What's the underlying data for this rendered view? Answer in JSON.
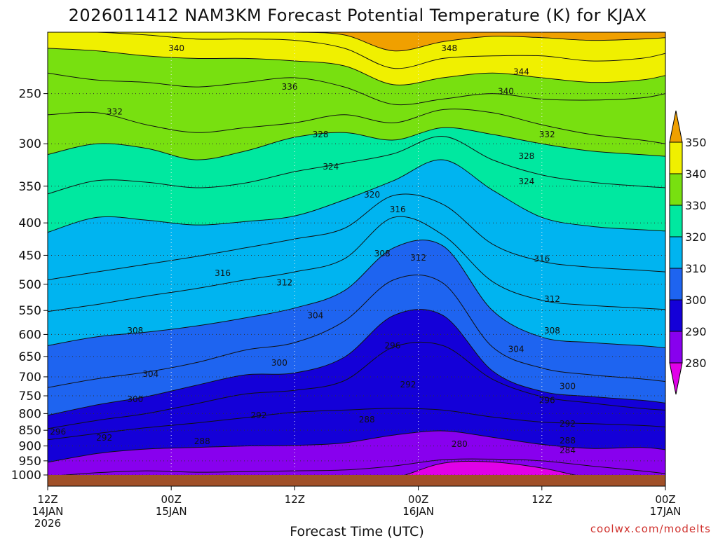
{
  "chart_data": {
    "type": "heatmap",
    "title": "2026011412 NAM3KM Forecast Potential Temperature (K) for KJAX",
    "xlabel": "Forecast Time (UTC)",
    "ylabel": "",
    "credit": "coolwx.com/modelts",
    "x_ticks": [
      {
        "lines": [
          "12Z",
          "14JAN",
          "2026"
        ]
      },
      {
        "lines": [
          "00Z",
          "15JAN"
        ]
      },
      {
        "lines": [
          "12Z"
        ]
      },
      {
        "lines": [
          "00Z",
          "16JAN"
        ]
      },
      {
        "lines": [
          "12Z"
        ]
      },
      {
        "lines": [
          "00Z",
          "17JAN"
        ]
      }
    ],
    "x_hours": [
      0,
      12,
      24,
      36,
      48,
      60
    ],
    "y_ticks": [
      250,
      300,
      350,
      400,
      450,
      500,
      550,
      600,
      650,
      700,
      750,
      800,
      850,
      900,
      950,
      1000
    ],
    "ylim_hPa": [
      1000,
      200
    ],
    "y_scale": "log-pressure",
    "grid": true,
    "colorbar": {
      "levels": [
        280,
        290,
        300,
        310,
        320,
        330,
        340,
        350
      ],
      "labels": [
        "280",
        "290",
        "300",
        "310",
        "320",
        "330",
        "340",
        "350"
      ],
      "colors": [
        "#e000e8",
        "#8800ee",
        "#1400d8",
        "#1e64f0",
        "#00b4f0",
        "#00e8a0",
        "#78e010",
        "#f0f000",
        "#f0a000"
      ],
      "extend": "both"
    },
    "x_samples": [
      0,
      4.8,
      9.6,
      14.4,
      19.2,
      24,
      28.8,
      33.6,
      38.4,
      43.2,
      48,
      52.8,
      57.6,
      60
    ],
    "isentropes": [
      {
        "theta": 280,
        "p": [
          1010,
          1010,
          1010,
          1010,
          1010,
          1010,
          1010,
          1010,
          958,
          954,
          975,
          1010,
          1010,
          1010
        ]
      },
      {
        "theta": 284,
        "p": [
          1005,
          992,
          985,
          990,
          988,
          985,
          982,
          968,
          946,
          944,
          950,
          968,
          985,
          995
        ]
      },
      {
        "theta": 288,
        "p": [
          955,
          925,
          910,
          905,
          900,
          898,
          890,
          865,
          852,
          872,
          895,
          908,
          905,
          912
        ]
      },
      {
        "theta": 292,
        "p": [
          880,
          860,
          842,
          828,
          812,
          796,
          790,
          785,
          790,
          810,
          825,
          830,
          835,
          840
        ]
      },
      {
        "theta": 296,
        "p": [
          845,
          820,
          800,
          772,
          745,
          735,
          710,
          628,
          625,
          706,
          752,
          770,
          785,
          790
        ]
      },
      {
        "theta": 300,
        "p": [
          805,
          775,
          752,
          722,
          695,
          690,
          652,
          560,
          560,
          685,
          738,
          752,
          762,
          770
        ]
      },
      {
        "theta": 304,
        "p": [
          728,
          705,
          688,
          665,
          635,
          618,
          572,
          492,
          498,
          628,
          678,
          695,
          705,
          712
        ]
      },
      {
        "theta": 308,
        "p": [
          625,
          605,
          595,
          582,
          565,
          545,
          512,
          438,
          435,
          550,
          606,
          618,
          625,
          630
        ]
      },
      {
        "theta": 312,
        "p": [
          552,
          538,
          522,
          508,
          492,
          478,
          456,
          392,
          418,
          495,
          530,
          540,
          545,
          548
        ]
      },
      {
        "theta": 316,
        "p": [
          492,
          478,
          465,
          452,
          438,
          424,
          408,
          362,
          374,
          432,
          460,
          470,
          475,
          478
        ]
      },
      {
        "theta": 320,
        "p": [
          414,
          392,
          396,
          403,
          398,
          390,
          368,
          343,
          318,
          355,
          392,
          405,
          410,
          412
        ]
      },
      {
        "theta": 324,
        "p": [
          360,
          343,
          345,
          352,
          346,
          332,
          322,
          311,
          292,
          318,
          336,
          345,
          350,
          352
        ]
      },
      {
        "theta": 328,
        "p": [
          312,
          300,
          305,
          318,
          308,
          293,
          288,
          296,
          283,
          290,
          300,
          308,
          312,
          314
        ]
      },
      {
        "theta": 332,
        "p": [
          270,
          268,
          280,
          288,
          283,
          278,
          270,
          278,
          265,
          268,
          280,
          290,
          296,
          300
        ]
      },
      {
        "theta": 336,
        "p": [
          232,
          238,
          240,
          244,
          240,
          236,
          244,
          260,
          255,
          250,
          255,
          256,
          254,
          250
        ]
      },
      {
        "theta": 340,
        "p": [
          212,
          214,
          218,
          220,
          220,
          222,
          226,
          242,
          236,
          232,
          236,
          240,
          238,
          234
        ]
      },
      {
        "theta": 344,
        "p": [
          200,
          200,
          202,
          205,
          205,
          206,
          212,
          228,
          220,
          218,
          218,
          222,
          220,
          216
        ]
      },
      {
        "theta": 348,
        "p": [
          200,
          200,
          200,
          200,
          200,
          200,
          202,
          214,
          207,
          203,
          204,
          206,
          205,
          204
        ]
      }
    ],
    "contour_labels": [
      {
        "text": "340",
        "h": 12.5,
        "p": 212
      },
      {
        "text": "348",
        "h": 39,
        "p": 212
      },
      {
        "text": "344",
        "h": 46,
        "p": 231
      },
      {
        "text": "340",
        "h": 44.5,
        "p": 248
      },
      {
        "text": "336",
        "h": 23.5,
        "p": 244
      },
      {
        "text": "332",
        "h": 6.5,
        "p": 267
      },
      {
        "text": "332",
        "h": 48.5,
        "p": 290
      },
      {
        "text": "328",
        "h": 26.5,
        "p": 290
      },
      {
        "text": "328",
        "h": 46.5,
        "p": 314
      },
      {
        "text": "324",
        "h": 27.5,
        "p": 326
      },
      {
        "text": "324",
        "h": 46.5,
        "p": 344
      },
      {
        "text": "320",
        "h": 31.5,
        "p": 361
      },
      {
        "text": "316",
        "h": 34,
        "p": 381
      },
      {
        "text": "308",
        "h": 32.5,
        "p": 447
      },
      {
        "text": "312",
        "h": 36,
        "p": 454
      },
      {
        "text": "316",
        "h": 17,
        "p": 480
      },
      {
        "text": "316",
        "h": 48,
        "p": 456
      },
      {
        "text": "312",
        "h": 23,
        "p": 497
      },
      {
        "text": "312",
        "h": 49,
        "p": 528
      },
      {
        "text": "304",
        "h": 26,
        "p": 560
      },
      {
        "text": "308",
        "h": 8.5,
        "p": 592
      },
      {
        "text": "308",
        "h": 49,
        "p": 592
      },
      {
        "text": "296",
        "h": 33.5,
        "p": 625
      },
      {
        "text": "304",
        "h": 45.5,
        "p": 633
      },
      {
        "text": "300",
        "h": 22.5,
        "p": 665
      },
      {
        "text": "304",
        "h": 10,
        "p": 693
      },
      {
        "text": "292",
        "h": 35,
        "p": 720
      },
      {
        "text": "300",
        "h": 50.5,
        "p": 725
      },
      {
        "text": "300",
        "h": 8.5,
        "p": 760
      },
      {
        "text": "296",
        "h": 48.5,
        "p": 762
      },
      {
        "text": "292",
        "h": 20.5,
        "p": 805
      },
      {
        "text": "288",
        "h": 31,
        "p": 818
      },
      {
        "text": "292",
        "h": 50.5,
        "p": 830
      },
      {
        "text": "296",
        "h": 1,
        "p": 855
      },
      {
        "text": "292",
        "h": 5.5,
        "p": 874
      },
      {
        "text": "288",
        "h": 15,
        "p": 885
      },
      {
        "text": "288",
        "h": 50.5,
        "p": 883
      },
      {
        "text": "280",
        "h": 40,
        "p": 894
      },
      {
        "text": "284",
        "h": 50.5,
        "p": 915
      }
    ]
  }
}
